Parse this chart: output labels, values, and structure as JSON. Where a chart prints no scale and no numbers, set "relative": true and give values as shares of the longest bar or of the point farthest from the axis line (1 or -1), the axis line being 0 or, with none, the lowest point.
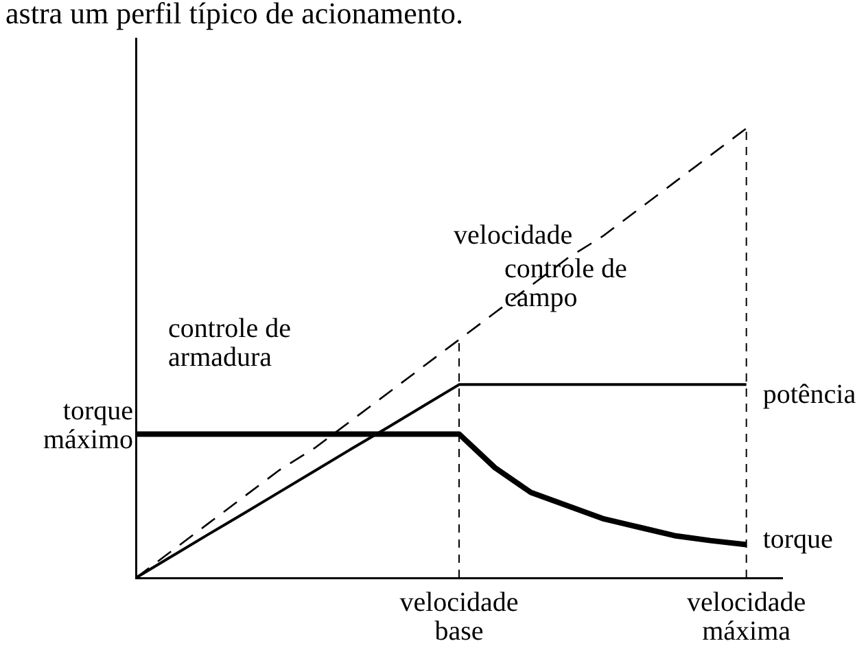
{
  "chart_data": {
    "type": "line",
    "title": "astra um perfil típico de acionamento.",
    "relative": true,
    "legend": false,
    "grid": false,
    "marker": "none",
    "categories": [
      null,
      null,
      null,
      null,
      null,
      null,
      null,
      null,
      null,
      "velocidade base",
      null,
      null,
      null,
      null,
      null,
      null,
      null,
      "velocidade máxima",
      null
    ],
    "series": [
      {
        "name": "velocidade",
        "color": "#000000",
        "line_style": "dashed",
        "values": [
          0,
          0.06,
          0.12,
          0.18,
          0.24,
          0.29,
          0.35,
          0.41,
          0.47,
          0.53,
          0.59,
          0.65,
          0.71,
          0.76,
          0.82,
          0.88,
          0.94,
          1.0,
          null
        ]
      },
      {
        "name": "potência",
        "color": "#000000",
        "line_style": "solid",
        "values": [
          0,
          0.048,
          0.096,
          0.143,
          0.191,
          0.239,
          0.287,
          0.334,
          0.382,
          0.43,
          0.43,
          0.43,
          0.43,
          0.43,
          0.43,
          0.43,
          0.43,
          0.43,
          null
        ]
      },
      {
        "name": "torque",
        "color": "#000000",
        "line_style": "solid",
        "values": [
          0.32,
          0.32,
          0.32,
          0.32,
          0.32,
          0.32,
          0.32,
          0.32,
          0.32,
          0.32,
          0.245,
          0.19,
          0.161,
          0.132,
          0.113,
          0.094,
          0.083,
          0.074,
          null
        ]
      }
    ],
    "ref_lines": [
      {
        "axis": "x",
        "value": "velocidade base",
        "line_style": "dashed",
        "color": "#000000"
      },
      {
        "axis": "x",
        "value": "velocidade máxima",
        "line_style": "dashed",
        "color": "#000000"
      }
    ],
    "annotations": [
      "controle de armadura",
      "controle de campo",
      "torque máximo"
    ]
  }
}
